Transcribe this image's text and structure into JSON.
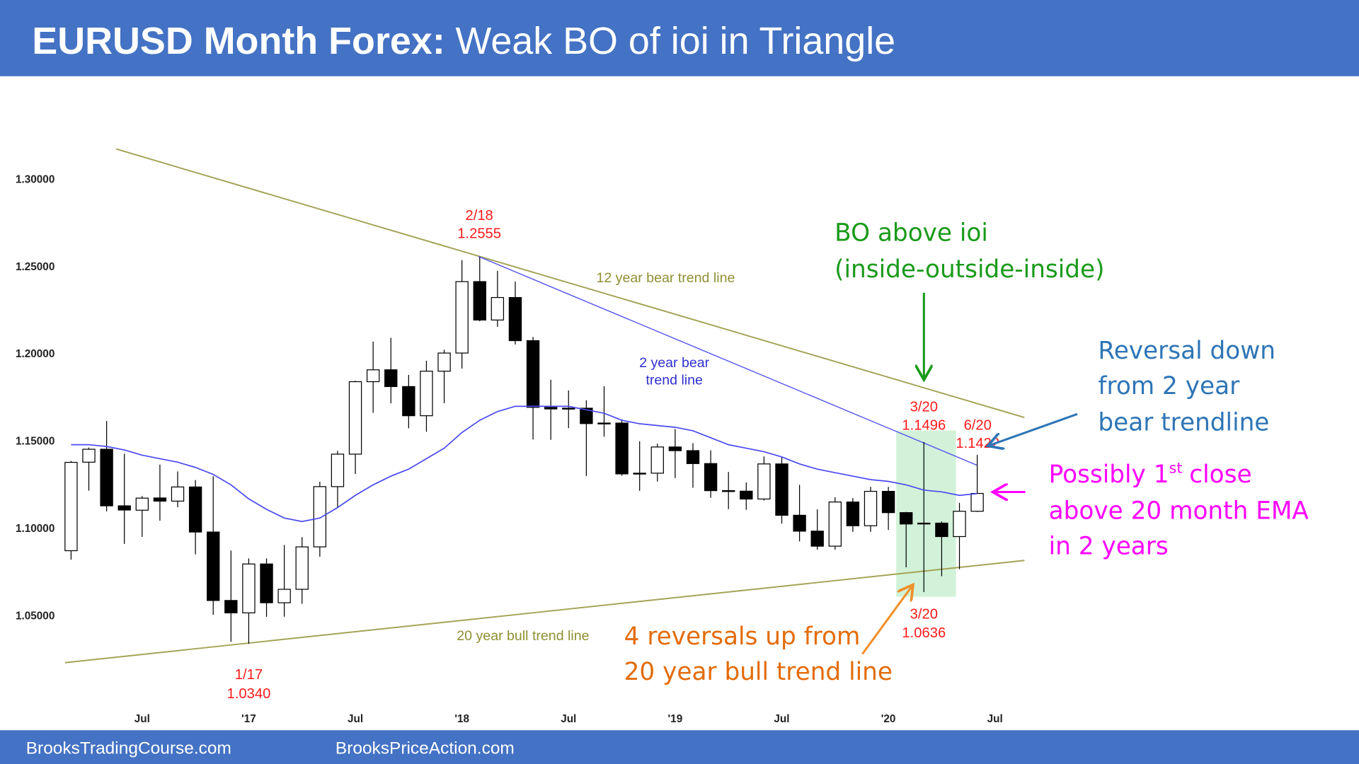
{
  "chart_data": {
    "type": "candlestick",
    "title_bold": "EURUSD Month Forex:",
    "title": "Weak BO of ioi in Triangle",
    "categories": [
      null,
      null,
      null,
      null,
      "Jul",
      null,
      null,
      null,
      null,
      null,
      "'17",
      null,
      null,
      null,
      null,
      null,
      "Jul",
      null,
      null,
      null,
      null,
      null,
      "'18",
      null,
      null,
      null,
      null,
      null,
      "Jul",
      null,
      null,
      null,
      null,
      null,
      "'19",
      null,
      null,
      null,
      null,
      null,
      "Jul",
      null,
      null,
      null,
      null,
      null,
      "'20",
      null,
      null,
      null,
      null,
      null,
      "Jul"
    ],
    "open": [
      1.0873,
      1.138,
      1.1454,
      1.113,
      1.1105,
      1.1175,
      1.1157,
      1.1238,
      1.098,
      1.0588,
      1.0517,
      1.0797,
      1.0575,
      1.0652,
      1.0895,
      1.124,
      1.1426,
      1.1841,
      1.1909,
      1.1813,
      1.1646,
      1.1901,
      1.2005,
      1.2414,
      1.2194,
      1.2323,
      1.2076,
      1.1694,
      1.1685,
      1.1689,
      1.1601,
      1.1604,
      1.1313,
      1.1317,
      1.1467,
      1.1446,
      1.1372,
      1.1217,
      1.1214,
      1.1169,
      1.137,
      1.1076,
      1.0985,
      1.0899,
      1.1152,
      1.1016,
      1.1213,
      1.1091,
      1.1026,
      1.1031,
      1.0954,
      1.1099,
      null
    ],
    "high": [
      1.1387,
      1.1464,
      1.1616,
      1.1428,
      1.1186,
      1.1366,
      1.1327,
      1.1278,
      1.1299,
      1.0874,
      1.0829,
      1.0829,
      1.0906,
      1.0951,
      1.1268,
      1.1445,
      1.1846,
      1.207,
      1.2092,
      1.188,
      1.1961,
      1.2024,
      1.2537,
      1.2555,
      1.2476,
      1.2414,
      1.2097,
      1.1852,
      1.1791,
      1.1734,
      1.1815,
      1.1625,
      1.15,
      1.1486,
      1.157,
      1.1489,
      1.1448,
      1.1324,
      1.1264,
      1.1413,
      1.1412,
      1.125,
      1.111,
      1.1179,
      1.1175,
      1.1239,
      1.1239,
      1.1095,
      1.1496,
      1.104,
      1.1147,
      1.1422,
      null
    ],
    "low": [
      1.0822,
      1.1217,
      1.1098,
      1.0912,
      1.0952,
      1.1045,
      1.1122,
      1.0852,
      1.0506,
      1.0352,
      1.034,
      1.0494,
      1.0495,
      1.0569,
      1.0839,
      1.1118,
      1.1312,
      1.1663,
      1.1717,
      1.1574,
      1.1554,
      1.1718,
      1.1916,
      1.2187,
      1.2155,
      1.2054,
      1.151,
      1.1508,
      1.1575,
      1.1301,
      1.1526,
      1.1302,
      1.1216,
      1.1269,
      1.1289,
      1.1234,
      1.1176,
      1.1111,
      1.1107,
      1.116,
      1.1028,
      1.0926,
      1.0879,
      1.0879,
      1.0981,
      1.0981,
      1.0992,
      1.0778,
      1.0636,
      1.0727,
      1.0767,
      1.1095,
      null
    ],
    "close": [
      1.1379,
      1.1454,
      1.113,
      1.1106,
      1.1174,
      1.1157,
      1.1238,
      1.098,
      1.0588,
      1.0517,
      1.0797,
      1.0575,
      1.0652,
      1.0895,
      1.124,
      1.1426,
      1.1841,
      1.1909,
      1.1813,
      1.1646,
      1.1901,
      1.2005,
      1.2414,
      1.2194,
      1.2323,
      1.2076,
      1.1694,
      1.1685,
      1.1689,
      1.1601,
      1.1604,
      1.1313,
      1.1317,
      1.1467,
      1.1446,
      1.1372,
      1.1217,
      1.1214,
      1.1169,
      1.137,
      1.1076,
      1.0985,
      1.0899,
      1.1152,
      1.1016,
      1.1213,
      1.1091,
      1.1026,
      1.1031,
      1.0954,
      1.1099,
      1.1201,
      null
    ],
    "up_color": "#ffffff",
    "down_color": "#000000",
    "ema": {
      "color": "#4a4af0",
      "values": [
        1.148,
        1.148,
        1.147,
        1.145,
        1.142,
        1.14,
        1.138,
        1.135,
        1.131,
        1.125,
        1.117,
        1.111,
        1.106,
        1.104,
        1.106,
        1.112,
        1.119,
        1.125,
        1.13,
        1.134,
        1.14,
        1.146,
        1.155,
        1.162,
        1.167,
        1.17,
        1.17,
        1.17,
        1.17,
        1.168,
        1.166,
        1.162,
        1.16,
        1.159,
        1.158,
        1.156,
        1.152,
        1.148,
        1.146,
        1.144,
        1.141,
        1.137,
        1.134,
        1.132,
        1.13,
        1.128,
        1.127,
        1.125,
        1.122,
        1.121,
        1.119,
        1.12,
        null
      ]
    },
    "ylim": [
      1.01,
      1.33
    ],
    "yticks": [
      {
        "value": 1.05,
        "label": "1.05000"
      },
      {
        "value": 1.1,
        "label": "1.10000"
      },
      {
        "value": 1.15,
        "label": "1.15000"
      },
      {
        "value": 1.2,
        "label": "1.20000"
      },
      {
        "value": 1.25,
        "label": "1.25000"
      },
      {
        "value": 1.3,
        "label": "1.30000"
      }
    ],
    "annotations": [
      {
        "lines": [
          "2/18",
          "1.2555"
        ]
      },
      {
        "lines": [
          "1/17",
          "1.0340"
        ]
      },
      {
        "lines": [
          "3/20",
          "1.1496"
        ]
      },
      {
        "lines": [
          "6/20",
          "1.1422"
        ]
      },
      {
        "lines": [
          "3/20",
          "1.0636"
        ]
      },
      {
        "lines": [
          "BO above ioi",
          "(inside-outside-inside)"
        ]
      },
      {
        "lines": [
          "Reversal down",
          "from 2 year",
          "bear trendline"
        ]
      },
      {
        "lines": [
          "Possibly 1",
          "st",
          "close",
          "above 20 month EMA",
          "in 2 years"
        ]
      },
      {
        "lines": [
          "4 reversals up from",
          "20 year bull trend line"
        ]
      },
      {
        "lines": [
          "12 year bear trend line"
        ]
      },
      {
        "lines": [
          "2 year bear",
          "trend line"
        ]
      },
      {
        "lines": [
          "20 year bull trend line"
        ]
      }
    ],
    "footer": [
      "BrooksTradingCourse.com",
      "BrooksPriceAction.com"
    ]
  }
}
